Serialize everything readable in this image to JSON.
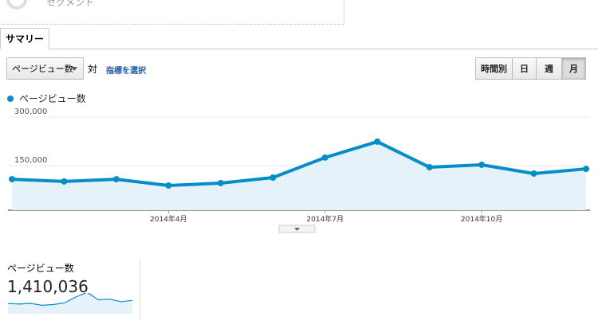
{
  "segment_label": "セグメント",
  "tabs": {
    "active": "サマリー"
  },
  "controls": {
    "metric_dropdown": "ページビュー数",
    "versus": "対",
    "select_metric": "指標を選択",
    "periods": [
      "時間別",
      "日",
      "週",
      "月"
    ],
    "active_period": 3
  },
  "chart_data": {
    "type": "line",
    "categories": [
      null,
      null,
      null,
      "2014年4月",
      null,
      null,
      "2014年7月",
      null,
      null,
      "2014年10月",
      null,
      null
    ],
    "series": [
      {
        "name": "ページビュー数",
        "color": "#058dc7",
        "values": [
          108000,
          101000,
          108000,
          88500,
          96000,
          113000,
          175000,
          224000,
          145000,
          152500,
          125500,
          140000
        ]
      }
    ],
    "ylim": [
      0,
      300000
    ],
    "yticks": [
      {
        "value": 150000,
        "label": "150,000"
      },
      {
        "value": 300000,
        "label": "300,000"
      }
    ],
    "area": true,
    "grid": true
  },
  "summary": {
    "label": "ページビュー数",
    "value": "1,410,036"
  }
}
